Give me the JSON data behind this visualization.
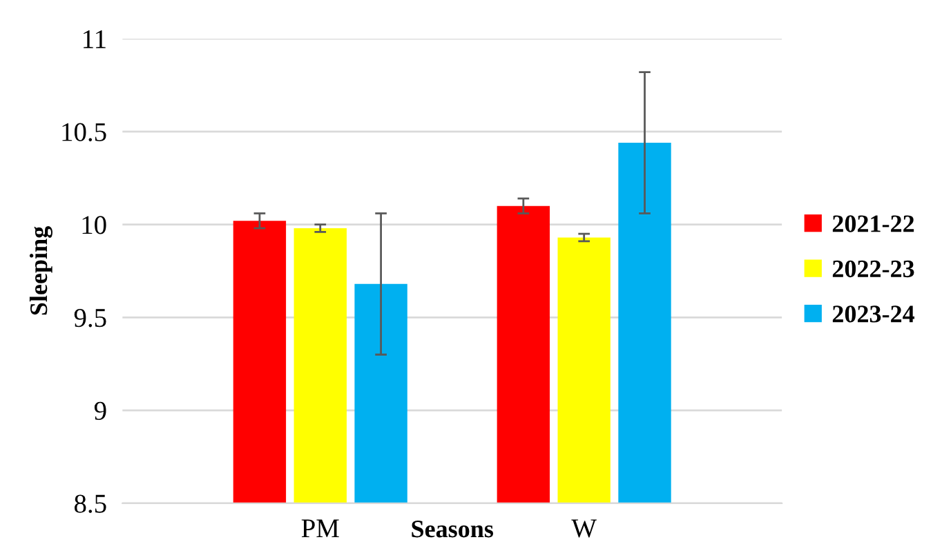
{
  "chart_data": {
    "type": "bar",
    "xlabel": "Seasons",
    "ylabel": "Sleeping",
    "categories": [
      "PM",
      "W"
    ],
    "series": [
      {
        "name": "2021-22",
        "color": "#ff0000",
        "values": [
          10.02,
          10.1
        ],
        "errors": [
          0.04,
          0.04
        ]
      },
      {
        "name": "2022-23",
        "color": "#ffff00",
        "values": [
          9.98,
          9.93
        ],
        "errors": [
          0.02,
          0.02
        ]
      },
      {
        "name": "2023-24",
        "color": "#00b0f0",
        "values": [
          9.68,
          10.44
        ],
        "errors": [
          0.38,
          0.38
        ]
      }
    ],
    "ylim": [
      8.5,
      11
    ],
    "yticks": [
      8.5,
      9,
      9.5,
      10,
      10.5,
      11
    ],
    "grid": "y",
    "legend": "right"
  }
}
